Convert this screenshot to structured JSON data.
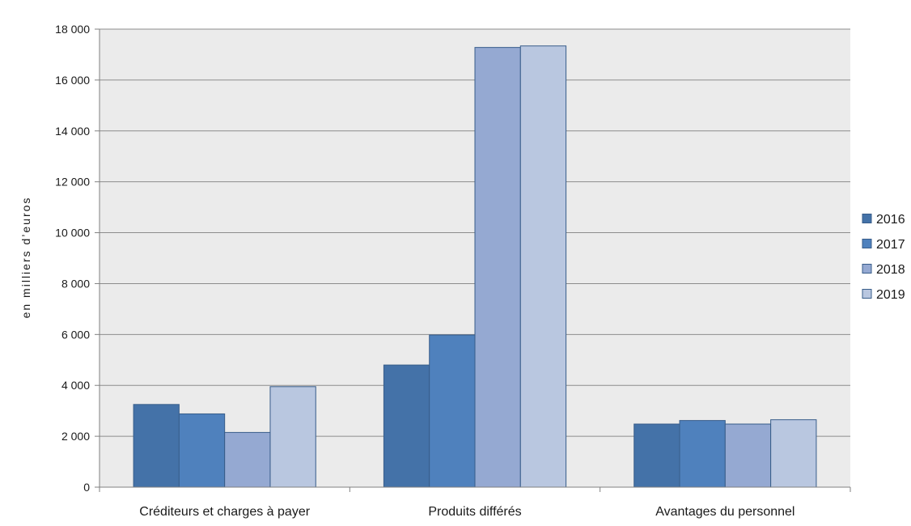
{
  "chart_data": {
    "type": "bar",
    "title": "",
    "xlabel": "",
    "ylabel": "en milliers d’euros",
    "ylim": [
      0,
      18000
    ],
    "yticks": [
      0,
      2000,
      4000,
      6000,
      8000,
      10000,
      12000,
      14000,
      16000,
      18000
    ],
    "ytick_labels": [
      "0",
      "2 000",
      "4 000",
      "6 000",
      "8 000",
      "10 000",
      "12 000",
      "14 000",
      "16 000",
      "18 000"
    ],
    "grid": true,
    "legend_position": "right",
    "categories": [
      "Créditeurs et charges à payer",
      "Produits différés",
      "Avantages du personnel"
    ],
    "series": [
      {
        "name": "2016",
        "color": "#4472a8",
        "values": [
          3250,
          4800,
          2480
        ]
      },
      {
        "name": "2017",
        "color": "#4f81bd",
        "values": [
          2880,
          5980,
          2620
        ]
      },
      {
        "name": "2018",
        "color": "#95a9d2",
        "values": [
          2150,
          17280,
          2480
        ]
      },
      {
        "name": "2019",
        "color": "#b9c7e0",
        "values": [
          3950,
          17340,
          2650
        ]
      }
    ],
    "colors": {
      "plot_background": "#ebebeb",
      "gridline": "#8c8c8c",
      "bar_outline": "#385d8a",
      "axis": "#808080"
    }
  }
}
